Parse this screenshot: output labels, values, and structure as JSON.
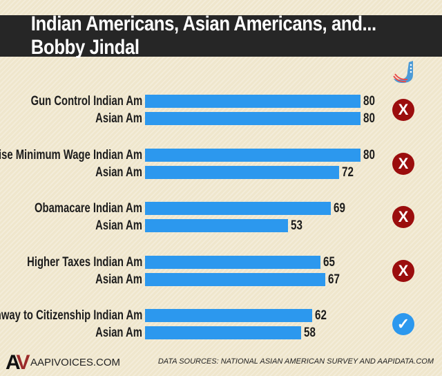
{
  "title": "Indian Americans, Asian Americans, and... Bobby Jindal",
  "colors": {
    "bar": "#2c98ee",
    "x": "#9b0d0d",
    "check": "#2c98ee",
    "title_bg": "#262626"
  },
  "chart_data": {
    "type": "bar",
    "orientation": "horizontal",
    "title": "Indian Americans, Asian Americans, and... Bobby Jindal",
    "xlim": [
      0,
      100
    ],
    "grid": false,
    "groups": [
      {
        "topic": "Gun Control",
        "indian_label": "Gun Control Indian Am",
        "asian_label": "Asian Am",
        "indian": 80,
        "asian": 80,
        "jindal": "x-icon"
      },
      {
        "topic": "Raise Minimum Wage",
        "indian_label": "Raise Minimum Wage Indian Am",
        "asian_label": "Asian Am",
        "indian": 80,
        "asian": 72,
        "jindal": "x-icon"
      },
      {
        "topic": "Obamacare",
        "indian_label": "Obamacare Indian Am",
        "asian_label": "Asian Am",
        "indian": 69,
        "asian": 53,
        "jindal": "x-icon"
      },
      {
        "topic": "Higher Taxes",
        "indian_label": "Higher Taxes Indian Am",
        "asian_label": "Asian Am",
        "indian": 65,
        "asian": 67,
        "jindal": "x-icon"
      },
      {
        "topic": "Pathway to Citizenship",
        "indian_label": "Pathway to Citizenship Indian Am",
        "asian_label": "Asian Am",
        "indian": 62,
        "asian": 58,
        "jindal": "check-icon"
      }
    ]
  },
  "footer": {
    "logo": "AV",
    "site": "AAPIVOICES.COM",
    "sources": "DATA SOURCES: NATIONAL ASIAN AMERICAN SURVEY AND AAPIDATA.COM"
  }
}
